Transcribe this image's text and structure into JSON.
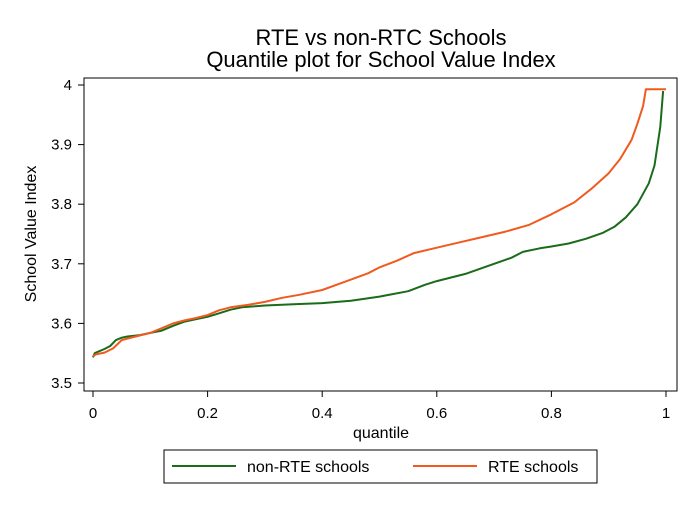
{
  "chart_data": {
    "type": "line",
    "title": "RTE vs non-RTC Schools",
    "subtitle": "Quantile plot for School Value Index",
    "xlabel": "quantile",
    "ylabel": "School Value Index",
    "xlim": [
      0,
      1
    ],
    "ylim": [
      3.49,
      4.0
    ],
    "x_ticks": [
      "0",
      "0.2",
      "0.4",
      "0.6",
      "0.8",
      "1"
    ],
    "y_ticks": [
      "3.5",
      "3.6",
      "3.7",
      "3.8",
      "3.9",
      "4"
    ],
    "grid": false,
    "legend_position": "bottom",
    "series": [
      {
        "name": "non-RTE schools",
        "color": "#1a6b1a",
        "points": [
          [
            0.0,
            3.543
          ],
          [
            0.003,
            3.55
          ],
          [
            0.01,
            3.553
          ],
          [
            0.02,
            3.557
          ],
          [
            0.03,
            3.562
          ],
          [
            0.04,
            3.572
          ],
          [
            0.05,
            3.576
          ],
          [
            0.06,
            3.578
          ],
          [
            0.08,
            3.58
          ],
          [
            0.1,
            3.584
          ],
          [
            0.12,
            3.588
          ],
          [
            0.14,
            3.596
          ],
          [
            0.16,
            3.603
          ],
          [
            0.18,
            3.607
          ],
          [
            0.2,
            3.611
          ],
          [
            0.22,
            3.617
          ],
          [
            0.24,
            3.623
          ],
          [
            0.26,
            3.627
          ],
          [
            0.3,
            3.63
          ],
          [
            0.35,
            3.632
          ],
          [
            0.4,
            3.634
          ],
          [
            0.45,
            3.638
          ],
          [
            0.5,
            3.645
          ],
          [
            0.55,
            3.654
          ],
          [
            0.58,
            3.665
          ],
          [
            0.6,
            3.671
          ],
          [
            0.65,
            3.683
          ],
          [
            0.7,
            3.7
          ],
          [
            0.73,
            3.71
          ],
          [
            0.75,
            3.72
          ],
          [
            0.78,
            3.726
          ],
          [
            0.8,
            3.729
          ],
          [
            0.83,
            3.734
          ],
          [
            0.86,
            3.742
          ],
          [
            0.89,
            3.752
          ],
          [
            0.91,
            3.762
          ],
          [
            0.93,
            3.778
          ],
          [
            0.95,
            3.8
          ],
          [
            0.97,
            3.835
          ],
          [
            0.98,
            3.865
          ],
          [
            0.99,
            3.93
          ],
          [
            0.995,
            3.99
          ]
        ]
      },
      {
        "name": "RTE schools",
        "color": "#f05a1e",
        "points": [
          [
            0.0,
            3.545
          ],
          [
            0.005,
            3.548
          ],
          [
            0.02,
            3.551
          ],
          [
            0.035,
            3.558
          ],
          [
            0.05,
            3.572
          ],
          [
            0.07,
            3.577
          ],
          [
            0.1,
            3.584
          ],
          [
            0.12,
            3.592
          ],
          [
            0.14,
            3.6
          ],
          [
            0.16,
            3.605
          ],
          [
            0.18,
            3.609
          ],
          [
            0.2,
            3.614
          ],
          [
            0.22,
            3.622
          ],
          [
            0.24,
            3.627
          ],
          [
            0.27,
            3.631
          ],
          [
            0.3,
            3.636
          ],
          [
            0.33,
            3.643
          ],
          [
            0.36,
            3.648
          ],
          [
            0.4,
            3.656
          ],
          [
            0.44,
            3.67
          ],
          [
            0.48,
            3.684
          ],
          [
            0.5,
            3.694
          ],
          [
            0.53,
            3.705
          ],
          [
            0.56,
            3.718
          ],
          [
            0.6,
            3.727
          ],
          [
            0.64,
            3.736
          ],
          [
            0.68,
            3.745
          ],
          [
            0.72,
            3.754
          ],
          [
            0.76,
            3.765
          ],
          [
            0.8,
            3.783
          ],
          [
            0.84,
            3.803
          ],
          [
            0.87,
            3.826
          ],
          [
            0.9,
            3.852
          ],
          [
            0.92,
            3.876
          ],
          [
            0.94,
            3.908
          ],
          [
            0.95,
            3.935
          ],
          [
            0.96,
            3.965
          ],
          [
            0.965,
            3.993
          ],
          [
            1.0,
            3.993
          ]
        ]
      }
    ]
  }
}
